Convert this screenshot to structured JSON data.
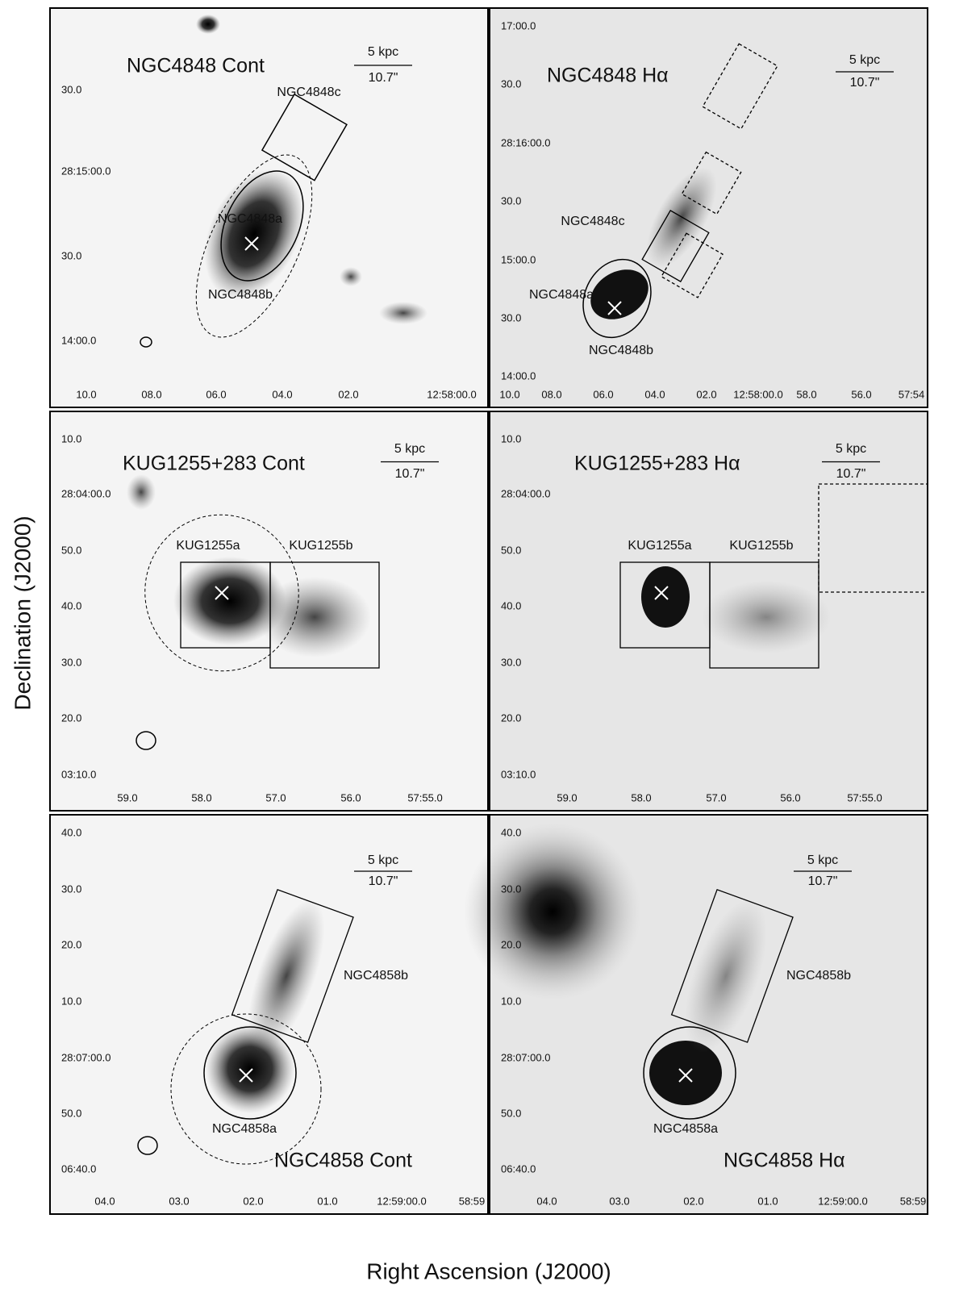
{
  "axes": {
    "x_label": "Right Ascension (J2000)",
    "y_label": "Declination (J2000)"
  },
  "panels": [
    {
      "title": "NGC4848 Cont",
      "scale": [
        "5 kpc",
        "10.7\""
      ],
      "labels": [
        "NGC4848c",
        "NGC4848a",
        "NGC4848b"
      ],
      "yticks": [
        "30.0",
        "28:15:00.0",
        "30.0",
        "14:00.0"
      ],
      "xticks": [
        "10.0",
        "08.0",
        "06.0",
        "04.0",
        "02.0",
        "12:58:00.0"
      ]
    },
    {
      "title": "NGC4848 Hα",
      "scale": [
        "5 kpc",
        "10.7\""
      ],
      "labels": [
        "NGC4848c",
        "NGC4848a",
        "NGC4848b"
      ],
      "yticks": [
        "17:00.0",
        "30.0",
        "28:16:00.0",
        "30.0",
        "15:00.0",
        "30.0",
        "14:00.0"
      ],
      "xticks": [
        "10.0",
        "08.0",
        "06.0",
        "04.0",
        "02.0",
        "12:58:00.0",
        "58.0",
        "56.0",
        "57:54"
      ]
    },
    {
      "title": "KUG1255+283 Cont",
      "scale": [
        "5 kpc",
        "10.7\""
      ],
      "labels": [
        "KUG1255a",
        "KUG1255b"
      ],
      "yticks": [
        "10.0",
        "28:04:00.0",
        "50.0",
        "40.0",
        "30.0",
        "20.0",
        "03:10.0"
      ],
      "xticks": [
        "59.0",
        "58.0",
        "57.0",
        "56.0",
        "57:55.0"
      ]
    },
    {
      "title": "KUG1255+283 Hα",
      "scale": [
        "5 kpc",
        "10.7\""
      ],
      "labels": [
        "KUG1255a",
        "KUG1255b"
      ],
      "yticks": [
        "10.0",
        "28:04:00.0",
        "50.0",
        "40.0",
        "30.0",
        "20.0",
        "03:10.0"
      ],
      "xticks": [
        "59.0",
        "58.0",
        "57.0",
        "56.0",
        "57:55.0"
      ]
    },
    {
      "title": "NGC4858 Cont",
      "scale": [
        "5 kpc",
        "10.7\""
      ],
      "labels": [
        "NGC4858b",
        "NGC4858a"
      ],
      "yticks": [
        "40.0",
        "30.0",
        "20.0",
        "10.0",
        "28:07:00.0",
        "50.0",
        "06:40.0"
      ],
      "xticks": [
        "04.0",
        "03.0",
        "02.0",
        "01.0",
        "12:59:00.0",
        "58:59"
      ]
    },
    {
      "title": "NGC4858 Hα",
      "scale": [
        "5 kpc",
        "10.7\""
      ],
      "labels": [
        "NGC4858b",
        "NGC4858a"
      ],
      "yticks": [
        "40.0",
        "30.0",
        "20.0",
        "10.0",
        "28:07:00.0",
        "50.0",
        "06:40.0"
      ],
      "xticks": [
        "04.0",
        "03.0",
        "02.0",
        "01.0",
        "12:59:00.0",
        "58:59"
      ]
    }
  ]
}
